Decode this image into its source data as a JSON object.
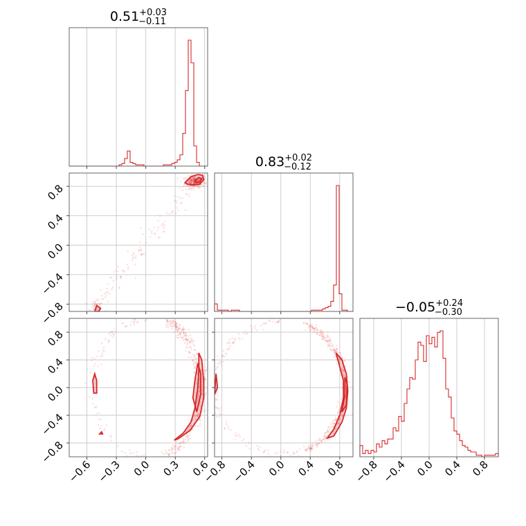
{
  "chart_data": {
    "type": "corner",
    "color": "#d62728",
    "params": [
      {
        "title_value": "0.51",
        "title_plus": "+0.03",
        "title_minus": "−0.11",
        "range": [
          -0.78,
          0.63
        ],
        "xticks": [
          -0.6,
          -0.3,
          0.0,
          0.3,
          0.6
        ],
        "xtick_labels": [
          "−0.6",
          "−0.3",
          "0.0",
          "0.3",
          "0.6"
        ]
      },
      {
        "title_value": "0.83",
        "title_plus": "+0.02",
        "title_minus": "−0.12",
        "range": [
          -0.9,
          0.98
        ],
        "yticks": [
          -0.8,
          -0.4,
          0.0,
          0.4,
          0.8
        ],
        "ytick_labels": [
          "−0.8",
          "−0.4",
          "0.0",
          "0.4",
          "0.8"
        ],
        "xticks": [
          -0.8,
          -0.4,
          0.0,
          0.4,
          0.8
        ],
        "xtick_labels": [
          "−0.8",
          "−0.4",
          "0.0",
          "0.4",
          "0.8"
        ]
      },
      {
        "title_value": "−0.05",
        "title_plus": "+0.24",
        "title_minus": "−0.30",
        "range": [
          -1.0,
          1.0
        ],
        "yticks": [
          -0.8,
          -0.4,
          0.0,
          0.4,
          0.8
        ],
        "ytick_labels": [
          "−0.8",
          "−0.4",
          "0.0",
          "0.4",
          "0.8"
        ],
        "xticks": [
          -0.8,
          -0.4,
          0.0,
          0.4,
          0.8
        ],
        "xtick_labels": [
          "−0.8",
          "−0.4",
          "0.0",
          "0.4",
          "0.8"
        ]
      }
    ],
    "hist_1d": [
      {
        "param": 0,
        "edges": [
          -0.78,
          0.63
        ],
        "counts": [
          0,
          0,
          0,
          0,
          0,
          0,
          0,
          0,
          0,
          0,
          0,
          0,
          0,
          0,
          0,
          0,
          0,
          0,
          1,
          2,
          6,
          12,
          3,
          2,
          1,
          1,
          1,
          0,
          0,
          0,
          0,
          0,
          0,
          0,
          1,
          1,
          1,
          2,
          3,
          5,
          9,
          26,
          60,
          100,
          82,
          16,
          3,
          0,
          0,
          0
        ]
      },
      {
        "param": 1,
        "edges": [
          -0.9,
          0.98
        ],
        "counts": [
          6,
          1,
          1,
          1,
          1,
          0,
          1,
          1,
          1,
          0,
          0,
          0,
          0,
          0,
          0,
          0,
          0,
          0,
          0,
          0,
          0,
          0,
          0,
          0,
          0,
          0,
          0,
          0,
          0,
          0,
          0,
          0,
          0,
          0,
          0,
          1,
          1,
          1,
          1,
          2,
          3,
          4,
          8,
          21,
          100,
          14,
          1,
          1,
          0,
          0
        ]
      },
      {
        "param": 2,
        "edges": [
          -1.0,
          1.0
        ],
        "counts": [
          7,
          2,
          4,
          2,
          4,
          3,
          8,
          6,
          10,
          8,
          11,
          11,
          18,
          16,
          25,
          22,
          33,
          42,
          49,
          48,
          60,
          71,
          69,
          59,
          75,
          70,
          74,
          68,
          77,
          78,
          61,
          42,
          37,
          24,
          16,
          14,
          10,
          7,
          6,
          4,
          3,
          3,
          1,
          1,
          0,
          1,
          1,
          1,
          1,
          2
        ]
      }
    ],
    "pairs": [
      {
        "x_param": 0,
        "y_param": 1,
        "contours": [
          [
            [
              0.4,
              0.85
            ],
            [
              0.46,
              0.93
            ],
            [
              0.53,
              0.96
            ],
            [
              0.58,
              0.95
            ],
            [
              0.59,
              0.89
            ],
            [
              0.55,
              0.83
            ],
            [
              0.48,
              0.82
            ],
            [
              0.42,
              0.83
            ]
          ],
          [
            [
              0.5,
              0.88
            ],
            [
              0.54,
              0.92
            ],
            [
              0.57,
              0.9
            ],
            [
              0.55,
              0.86
            ],
            [
              0.51,
              0.85
            ]
          ],
          [
            [
              -0.52,
              -0.9
            ],
            [
              -0.5,
              -0.82
            ],
            [
              -0.46,
              -0.86
            ],
            [
              -0.48,
              -0.9
            ]
          ]
        ]
      },
      {
        "x_param": 0,
        "y_param": 2,
        "contours": [
          [
            [
              0.29,
              -0.76
            ],
            [
              0.38,
              -0.66
            ],
            [
              0.46,
              -0.5
            ],
            [
              0.5,
              -0.3
            ],
            [
              0.53,
              0.0
            ],
            [
              0.54,
              0.25
            ],
            [
              0.54,
              0.5
            ],
            [
              0.57,
              0.4
            ],
            [
              0.59,
              0.1
            ],
            [
              0.59,
              -0.15
            ],
            [
              0.55,
              -0.42
            ],
            [
              0.45,
              -0.62
            ],
            [
              0.33,
              -0.74
            ]
          ],
          [
            [
              0.48,
              -0.15
            ],
            [
              0.5,
              0.1
            ],
            [
              0.53,
              0.35
            ],
            [
              0.56,
              0.2
            ],
            [
              0.56,
              -0.1
            ],
            [
              0.52,
              -0.35
            ]
          ],
          [
            [
              -0.53,
              -0.08
            ],
            [
              -0.54,
              0.1
            ],
            [
              -0.52,
              0.2
            ],
            [
              -0.5,
              0.1
            ],
            [
              -0.5,
              -0.08
            ]
          ],
          [
            [
              -0.47,
              -0.67
            ],
            [
              -0.45,
              -0.64
            ],
            [
              -0.44,
              -0.67
            ]
          ]
        ]
      },
      {
        "x_param": 1,
        "y_param": 2,
        "contours": [
          [
            [
              0.63,
              -0.73
            ],
            [
              0.72,
              -0.6
            ],
            [
              0.8,
              -0.4
            ],
            [
              0.85,
              -0.15
            ],
            [
              0.85,
              0.1
            ],
            [
              0.8,
              0.3
            ],
            [
              0.75,
              0.5
            ],
            [
              0.83,
              0.4
            ],
            [
              0.89,
              0.2
            ],
            [
              0.91,
              -0.05
            ],
            [
              0.89,
              -0.3
            ],
            [
              0.83,
              -0.5
            ],
            [
              0.72,
              -0.7
            ]
          ],
          [
            [
              0.83,
              -0.35
            ],
            [
              0.87,
              -0.1
            ],
            [
              0.87,
              0.15
            ],
            [
              0.9,
              0.05
            ],
            [
              0.89,
              -0.25
            ]
          ],
          [
            [
              -0.9,
              -0.1
            ],
            [
              -0.88,
              0.2
            ],
            [
              -0.86,
              0.0
            ]
          ]
        ]
      }
    ]
  }
}
